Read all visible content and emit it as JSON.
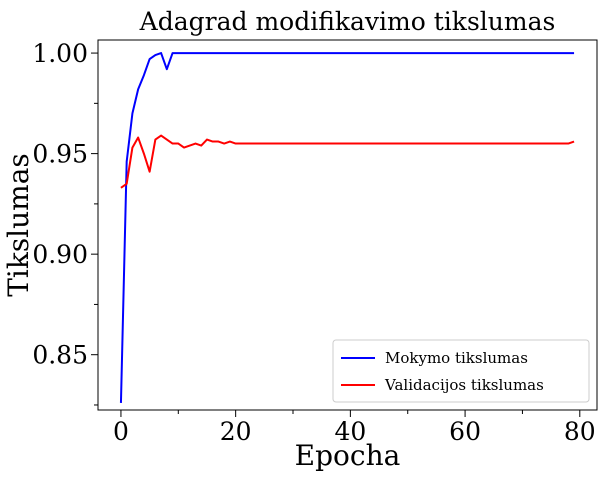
{
  "chart_data": {
    "type": "line",
    "title": "Adagrad modifikavimo tikslumas",
    "xlabel": "Epocha",
    "ylabel": "Tikslumas",
    "xlim": [
      -4,
      83
    ],
    "ylim": [
      0.8225,
      1.0065
    ],
    "x_ticks": [
      0,
      20,
      40,
      60,
      80
    ],
    "x_tick_labels": [
      "0",
      "20",
      "40",
      "60",
      "80"
    ],
    "y_ticks": [
      0.85,
      0.9,
      0.95,
      1.0
    ],
    "y_tick_labels": [
      "0.85",
      "0.90",
      "0.95",
      "1.00"
    ],
    "grid": false,
    "legend_position": "lower-right",
    "x": [
      0,
      1,
      2,
      3,
      4,
      5,
      6,
      7,
      8,
      9,
      10,
      11,
      12,
      13,
      14,
      15,
      16,
      17,
      18,
      19,
      20,
      21,
      22,
      23,
      24,
      25,
      26,
      27,
      28,
      29,
      30,
      31,
      32,
      33,
      34,
      35,
      36,
      37,
      38,
      39,
      40,
      41,
      42,
      43,
      44,
      45,
      46,
      47,
      48,
      49,
      50,
      51,
      52,
      53,
      54,
      55,
      56,
      57,
      58,
      59,
      60,
      61,
      62,
      63,
      64,
      65,
      66,
      67,
      68,
      69,
      70,
      71,
      72,
      73,
      74,
      75,
      76,
      77,
      78,
      79
    ],
    "series": [
      {
        "name": "Mokymo tikslumas",
        "color": "#0000ff",
        "values": [
          0.826,
          0.946,
          0.97,
          0.982,
          0.989,
          0.997,
          0.999,
          1.0,
          0.992,
          1.0,
          1.0,
          1.0,
          1.0,
          1.0,
          1.0,
          1.0,
          1.0,
          1.0,
          1.0,
          1.0,
          1.0,
          1.0,
          1.0,
          1.0,
          1.0,
          1.0,
          1.0,
          1.0,
          1.0,
          1.0,
          1.0,
          1.0,
          1.0,
          1.0,
          1.0,
          1.0,
          1.0,
          1.0,
          1.0,
          1.0,
          1.0,
          1.0,
          1.0,
          1.0,
          1.0,
          1.0,
          1.0,
          1.0,
          1.0,
          1.0,
          1.0,
          1.0,
          1.0,
          1.0,
          1.0,
          1.0,
          1.0,
          1.0,
          1.0,
          1.0,
          1.0,
          1.0,
          1.0,
          1.0,
          1.0,
          1.0,
          1.0,
          1.0,
          1.0,
          1.0,
          1.0,
          1.0,
          1.0,
          1.0,
          1.0,
          1.0,
          1.0,
          1.0,
          1.0,
          1.0
        ]
      },
      {
        "name": "Validacijos tikslumas",
        "color": "#ff0000",
        "values": [
          0.933,
          0.935,
          0.953,
          0.958,
          0.95,
          0.941,
          0.957,
          0.959,
          0.957,
          0.955,
          0.955,
          0.953,
          0.954,
          0.955,
          0.954,
          0.957,
          0.956,
          0.956,
          0.955,
          0.956,
          0.955,
          0.955,
          0.955,
          0.955,
          0.955,
          0.955,
          0.955,
          0.955,
          0.955,
          0.955,
          0.955,
          0.955,
          0.955,
          0.955,
          0.955,
          0.955,
          0.955,
          0.955,
          0.955,
          0.955,
          0.955,
          0.955,
          0.955,
          0.955,
          0.955,
          0.955,
          0.955,
          0.955,
          0.955,
          0.955,
          0.955,
          0.955,
          0.955,
          0.955,
          0.955,
          0.955,
          0.955,
          0.955,
          0.955,
          0.955,
          0.955,
          0.955,
          0.955,
          0.955,
          0.955,
          0.955,
          0.955,
          0.955,
          0.955,
          0.955,
          0.955,
          0.955,
          0.955,
          0.955,
          0.955,
          0.955,
          0.955,
          0.955,
          0.955,
          0.956
        ]
      }
    ]
  }
}
